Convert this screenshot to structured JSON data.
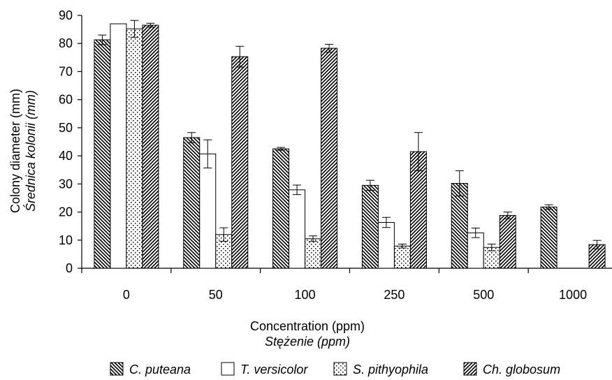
{
  "chart_data": {
    "type": "bar",
    "categories": [
      "0",
      "50",
      "100",
      "250",
      "500",
      "1000"
    ],
    "ylabel": "Colony diameter (mm)",
    "ylabel_alt": "Średnica kolonii (mm)",
    "xlabel": "Concentration (ppm)",
    "xlabel_alt": "Stężenie (ppm)",
    "ylim": [
      0,
      90
    ],
    "yticks": [
      0,
      10,
      20,
      30,
      40,
      50,
      60,
      70,
      80,
      90
    ],
    "legend_position": "bottom",
    "series": [
      {
        "name": "C. puteana",
        "pattern": "diag-back",
        "values": [
          81.3,
          46.5,
          42.5,
          29.5,
          30.2,
          21.8
        ],
        "errors": [
          1.7,
          1.8,
          0.5,
          1.8,
          4.5,
          0.8
        ]
      },
      {
        "name": "T. versicolor",
        "pattern": "plain",
        "values": [
          87.0,
          40.7,
          27.9,
          16.3,
          12.6,
          0
        ],
        "errors": [
          0,
          5.0,
          1.7,
          1.8,
          1.7,
          0
        ]
      },
      {
        "name": "S. pithyophila",
        "pattern": "dots",
        "values": [
          85.2,
          12.0,
          10.5,
          7.9,
          7.4,
          0
        ],
        "errors": [
          3.0,
          2.4,
          1.0,
          0.7,
          1.2,
          0
        ]
      },
      {
        "name": "Ch. globosum",
        "pattern": "diag-fwd",
        "values": [
          86.5,
          75.3,
          78.3,
          41.5,
          18.8,
          8.4
        ],
        "errors": [
          0.7,
          3.7,
          1.4,
          6.8,
          1.2,
          1.5
        ]
      }
    ]
  }
}
